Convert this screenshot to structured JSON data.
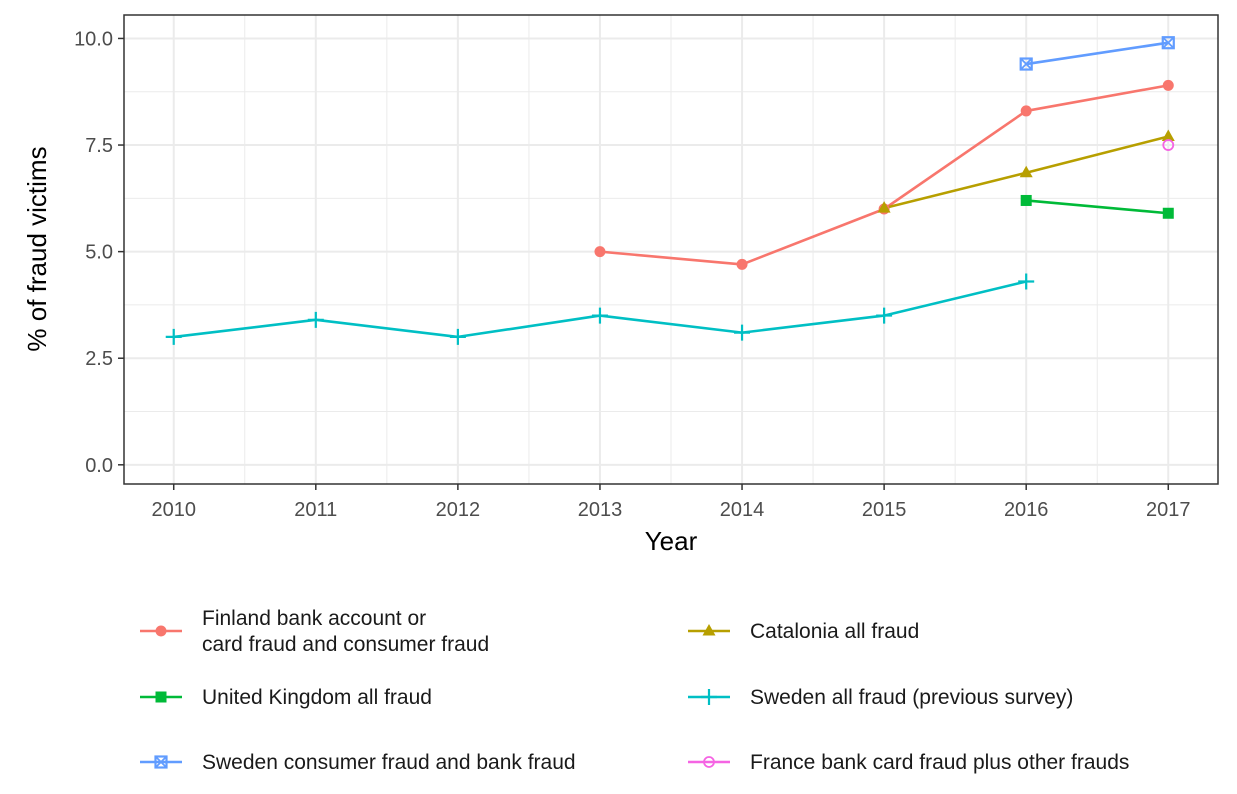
{
  "chart_data": {
    "type": "line",
    "title": "",
    "xlabel": "Year",
    "ylabel": "% of fraud victims",
    "x_ticks": [
      "2010",
      "2011",
      "2012",
      "2013",
      "2014",
      "2015",
      "2016",
      "2017"
    ],
    "y_ticks": [
      "0.0",
      "2.5",
      "5.0",
      "7.5",
      "10.0"
    ],
    "xlim": [
      2009.65,
      2017.35
    ],
    "ylim": [
      -0.45,
      10.55
    ],
    "grid": true,
    "legend_position": "bottom",
    "series": [
      {
        "name_lines": [
          "Finland bank account or",
          "card fraud and consumer fraud"
        ],
        "color": "#F8766D",
        "marker": "circle",
        "points": [
          [
            2013,
            5.0
          ],
          [
            2014,
            4.7
          ],
          [
            2015,
            6.0
          ],
          [
            2016,
            8.3
          ],
          [
            2017,
            8.9
          ]
        ]
      },
      {
        "name_lines": [
          "United Kingdom all fraud"
        ],
        "color": "#00BA38",
        "marker": "square",
        "points": [
          [
            2016,
            6.2
          ],
          [
            2017,
            5.9
          ]
        ]
      },
      {
        "name_lines": [
          "Sweden consumer fraud and bank fraud"
        ],
        "color": "#619CFF",
        "marker": "square-x",
        "points": [
          [
            2016,
            9.4
          ],
          [
            2017,
            9.9
          ]
        ]
      },
      {
        "name_lines": [
          "Catalonia all fraud"
        ],
        "color": "#B79F00",
        "marker": "triangle",
        "points": [
          [
            2015,
            6.02
          ],
          [
            2016,
            6.85
          ],
          [
            2017,
            7.7
          ]
        ]
      },
      {
        "name_lines": [
          "Sweden all fraud (previous survey)"
        ],
        "color": "#00BFC4",
        "marker": "plus",
        "points": [
          [
            2010,
            3.0
          ],
          [
            2011,
            3.4
          ],
          [
            2012,
            3.0
          ],
          [
            2013,
            3.5
          ],
          [
            2014,
            3.1
          ],
          [
            2015,
            3.5
          ],
          [
            2016,
            4.3
          ]
        ]
      },
      {
        "name_lines": [
          "France bank card fraud plus other frauds"
        ],
        "color": "#F564E3",
        "marker": "open-circle",
        "points": [
          [
            2017,
            7.5
          ]
        ]
      }
    ]
  }
}
